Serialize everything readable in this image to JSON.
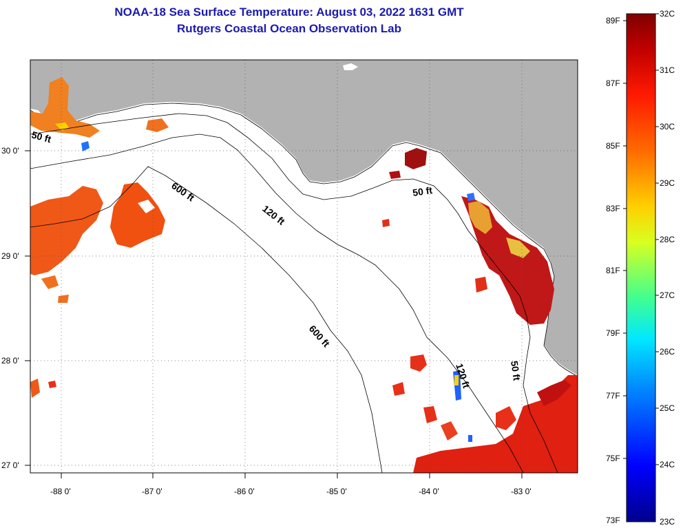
{
  "header": {
    "title": "NOAA-18 Sea Surface Temperature:  August 03, 2022 1631 GMT",
    "subtitle": "Rutgers Coastal Ocean Observation Lab"
  },
  "axes": {
    "lon_labels": [
      "-88 0'",
      "-87 0'",
      "-86 0'",
      "-85 0'",
      "-84 0'",
      "-83 0'"
    ],
    "lat_labels": [
      "30 0'",
      "29 0'",
      "28 0'",
      "27 0'"
    ]
  },
  "contours": {
    "c50a": "50 ft",
    "c600a": "600 ft",
    "c120a": "120 ft",
    "c50b": "50 ft",
    "c600b": "600 ft",
    "c120b": "120 ft",
    "c50c": "50 ft"
  },
  "colorbar": {
    "fahrenheit": [
      "89F",
      "87F",
      "85F",
      "83F",
      "81F",
      "79F",
      "77F",
      "75F",
      "73F"
    ],
    "celsius": [
      "32C",
      "31C",
      "30C",
      "29C",
      "28C",
      "27C",
      "26C",
      "25C",
      "24C",
      "23C"
    ]
  },
  "colors": {
    "title": "#1a1ab0",
    "land": "#b2b2b2",
    "ocean": "#ffffff",
    "warm": "#e03010",
    "hot": "#a00000",
    "orange": "#f06818"
  }
}
